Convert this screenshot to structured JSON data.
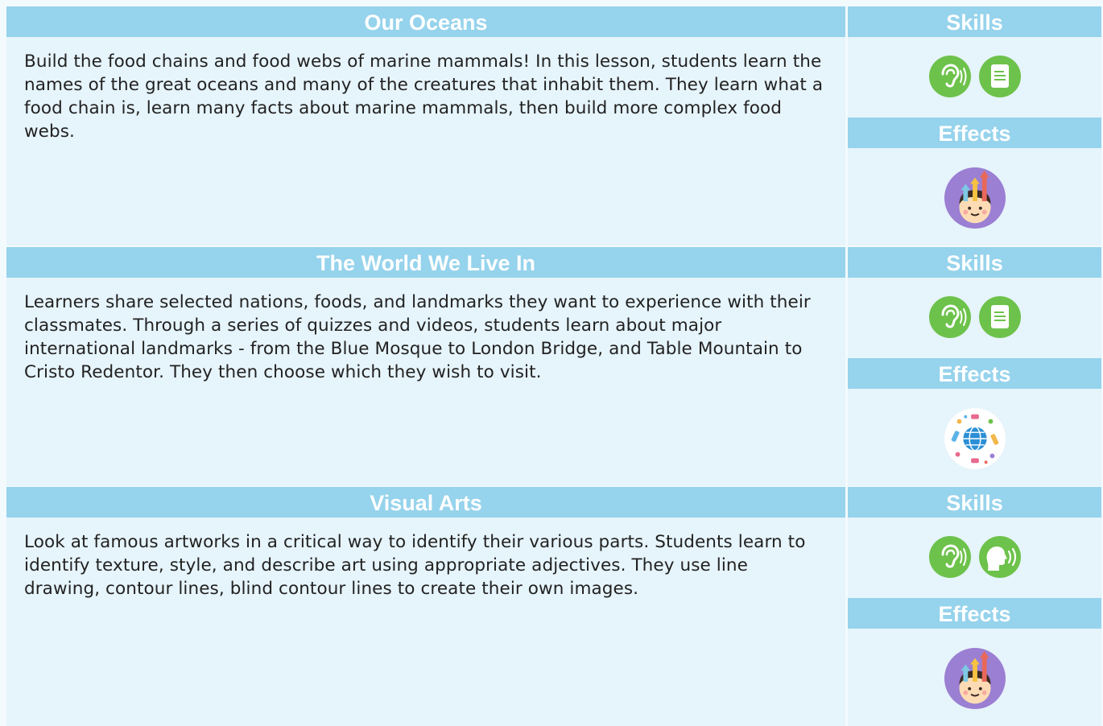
{
  "lessons": [
    {
      "title": "Our Oceans",
      "description": "Build the food chains and food webs of marine mammals! In this lesson, students learn the names of the great oceans and many of the creatures that inhabit them. They learn what a food chain is, learn many facts about marine mammals, then build more complex food webs.",
      "skills_label": "Skills",
      "effects_label": "Effects"
    },
    {
      "title": "The World We Live In",
      "description": "Learners share selected nations, foods, and landmarks they want to experience with their classmates. Through a series of quizzes and videos, students learn about major international landmarks - from the Blue Mosque to London Bridge, and Table Mountain to Cristo Redentor. They then choose which they wish to visit.",
      "skills_label": "Skills",
      "effects_label": "Effects"
    },
    {
      "title": "Visual Arts",
      "description": "Look at famous artworks in a critical way to identify their various parts. Students learn to identify texture, style, and describe art using appropriate adjectives. They use line drawing, contour lines, blind contour lines to create their own images.",
      "skills_label": "Skills",
      "effects_label": "Effects"
    }
  ]
}
